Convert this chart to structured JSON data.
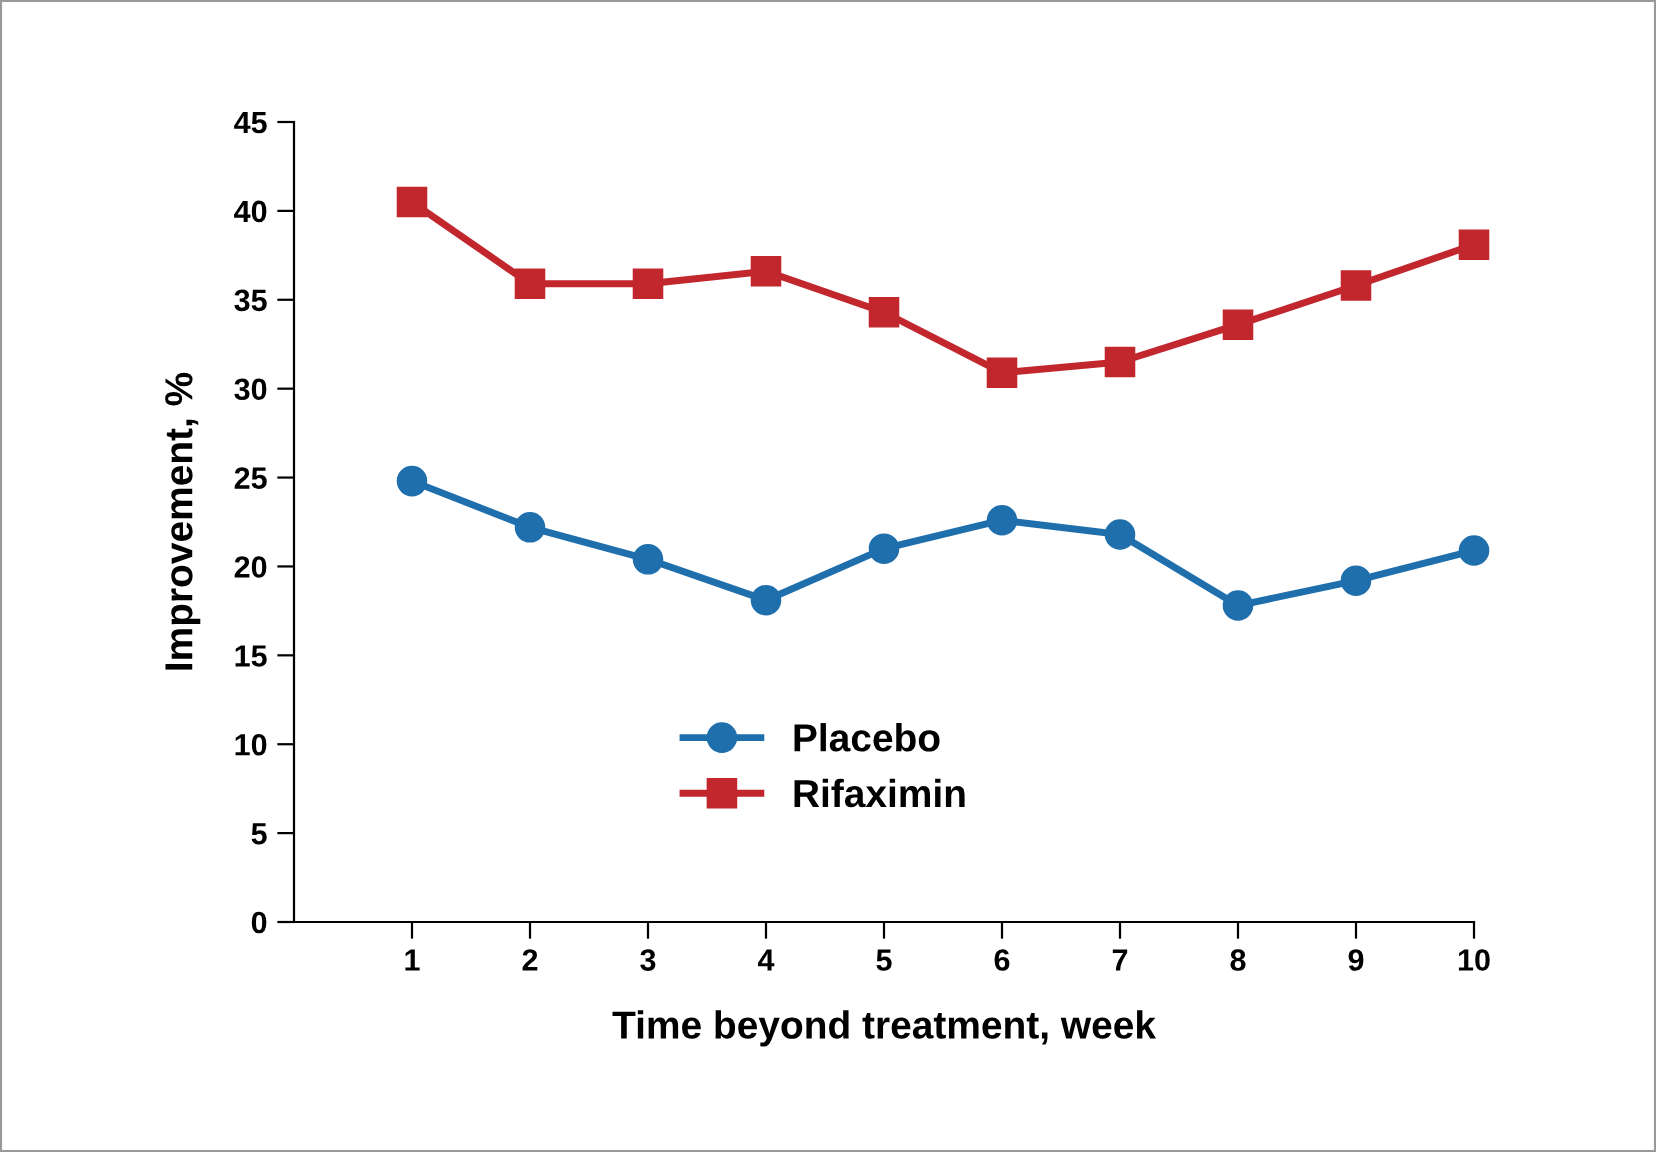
{
  "chart_data": {
    "type": "line",
    "xlabel": "Time beyond treatment, week",
    "ylabel": "Improvement, %",
    "x": [
      1,
      2,
      3,
      4,
      5,
      6,
      7,
      8,
      9,
      10
    ],
    "series": [
      {
        "name": "Placebo",
        "color": "#1f6fad",
        "marker": "circle",
        "values": [
          24.8,
          22.2,
          20.4,
          18.1,
          21.0,
          22.6,
          21.8,
          17.8,
          19.2,
          20.9
        ]
      },
      {
        "name": "Rifaximin",
        "color": "#c1272d",
        "marker": "square",
        "values": [
          40.5,
          35.9,
          35.9,
          36.6,
          34.3,
          30.9,
          31.5,
          33.6,
          35.8,
          38.1
        ]
      }
    ],
    "xlim": [
      0,
      10
    ],
    "xticks": [
      1,
      2,
      3,
      4,
      5,
      6,
      7,
      8,
      9,
      10
    ],
    "ylim": [
      0,
      45
    ],
    "yticks": [
      0,
      5,
      10,
      15,
      20,
      25,
      30,
      35,
      40,
      45
    ],
    "grid": false,
    "legend": "bottom",
    "line_style": "solid"
  }
}
